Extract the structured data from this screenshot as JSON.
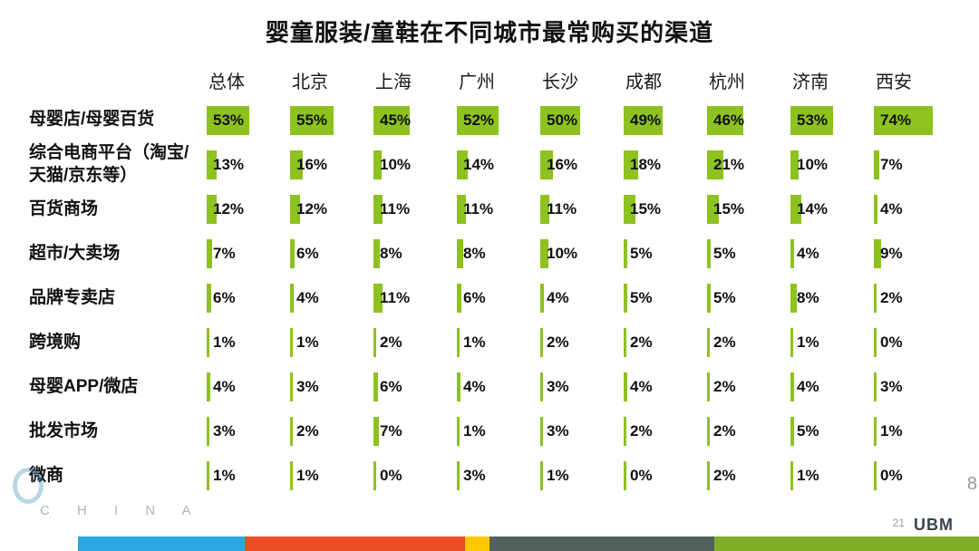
{
  "title": "婴童服装/童鞋在不同城市最常购买的渠道",
  "page_number": "21",
  "logo_text": "UBM",
  "watermark": "C H I N A",
  "side_mark": "8",
  "colors": {
    "bar_green": "#8dc21f"
  },
  "chart_data": {
    "type": "bar",
    "title": "婴童服装/童鞋在不同城市最常购买的渠道",
    "unit": "%",
    "value_range": [
      0,
      100
    ],
    "legend": "none",
    "categories": [
      "总体",
      "北京",
      "上海",
      "广州",
      "长沙",
      "成都",
      "杭州",
      "济南",
      "西安"
    ],
    "rows": [
      {
        "label": "母婴店/母婴百货",
        "values": [
          53,
          55,
          45,
          52,
          50,
          49,
          46,
          53,
          74
        ]
      },
      {
        "label": "综合电商平台（淘宝/天猫/京东等）",
        "values": [
          13,
          16,
          10,
          14,
          16,
          18,
          21,
          10,
          7
        ]
      },
      {
        "label": "百货商场",
        "values": [
          12,
          12,
          11,
          11,
          11,
          15,
          15,
          14,
          4
        ]
      },
      {
        "label": "超市/大卖场",
        "values": [
          7,
          6,
          8,
          8,
          10,
          5,
          5,
          4,
          9
        ]
      },
      {
        "label": "品牌专卖店",
        "values": [
          6,
          4,
          11,
          6,
          4,
          5,
          5,
          8,
          2
        ]
      },
      {
        "label": "跨境购",
        "values": [
          1,
          1,
          2,
          1,
          2,
          2,
          2,
          1,
          0
        ]
      },
      {
        "label": "母婴APP/微店",
        "values": [
          4,
          3,
          6,
          4,
          3,
          4,
          2,
          4,
          3
        ]
      },
      {
        "label": "批发市场",
        "values": [
          3,
          2,
          7,
          1,
          3,
          2,
          2,
          5,
          1
        ]
      },
      {
        "label": "微商",
        "values": [
          1,
          1,
          0,
          3,
          1,
          0,
          2,
          1,
          0
        ]
      }
    ]
  },
  "footer_strip": [
    {
      "color": "#ffffff",
      "width": 8
    },
    {
      "color": "#29a8e0",
      "width": 17
    },
    {
      "color": "#ee4d23",
      "width": 22.5
    },
    {
      "color": "#fdc800",
      "width": 2.5
    },
    {
      "color": "#53605b",
      "width": 23
    },
    {
      "color": "#7fae27",
      "width": 27
    }
  ]
}
